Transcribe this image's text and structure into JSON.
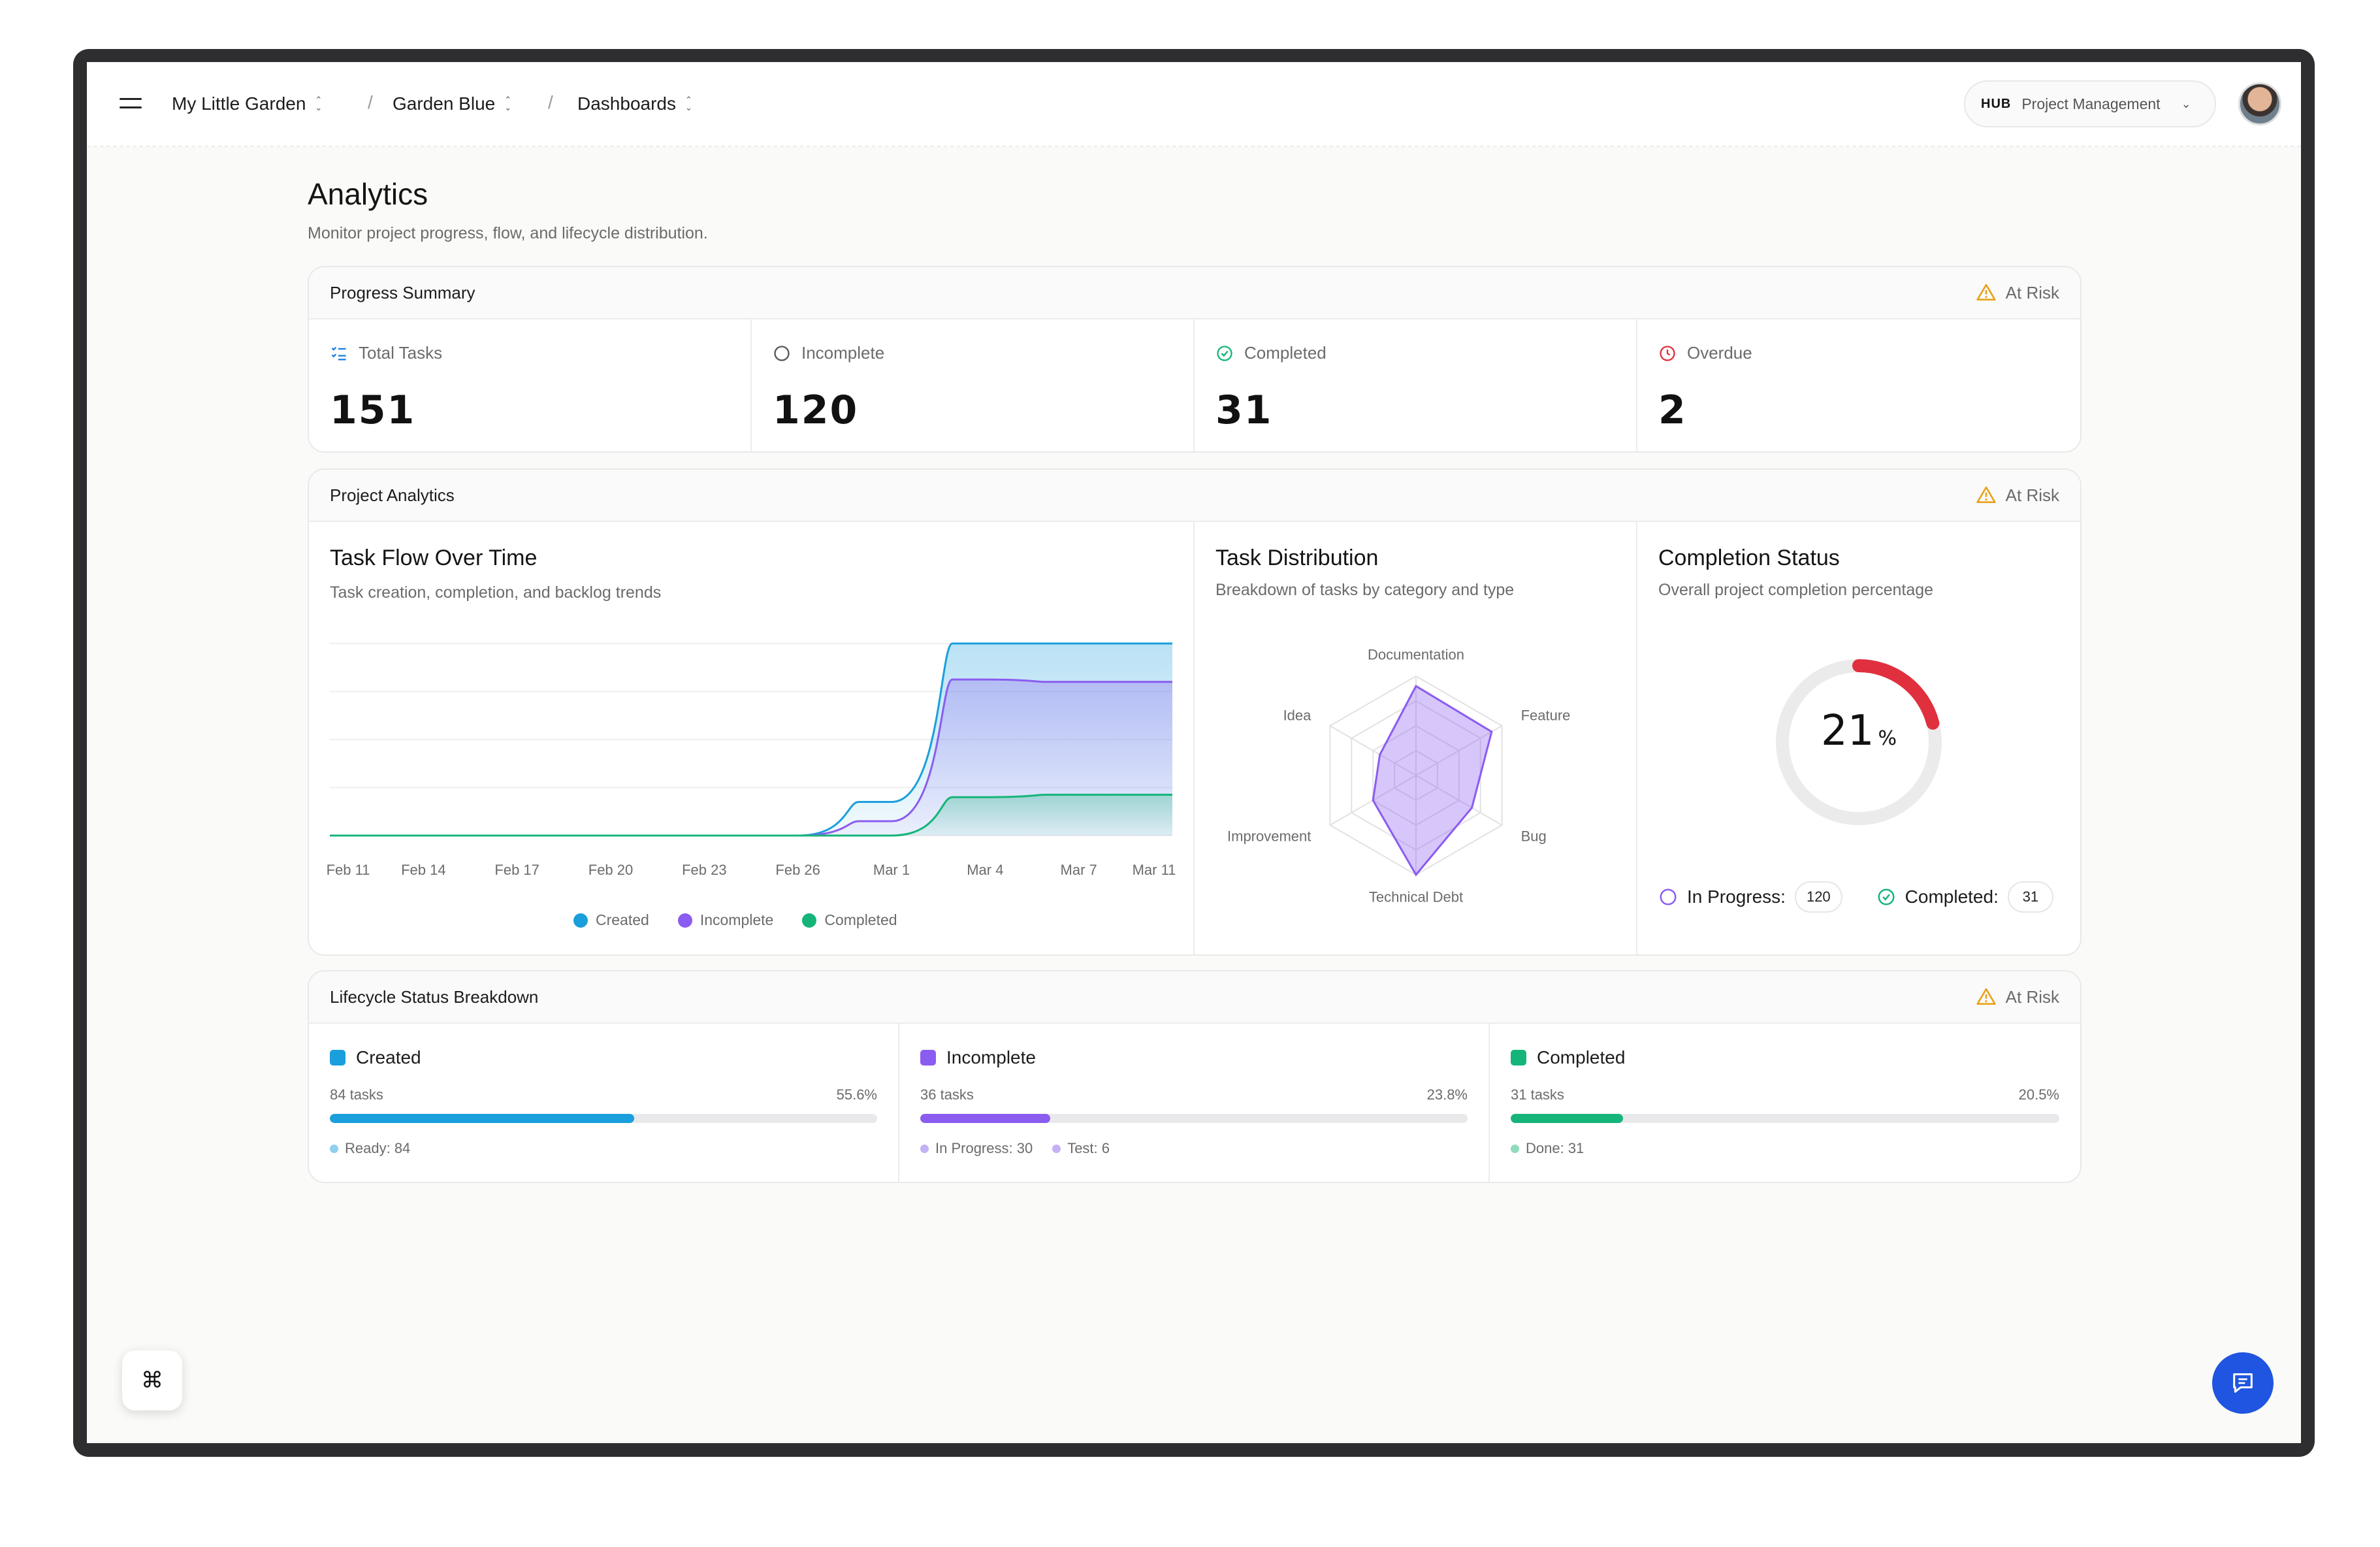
{
  "header": {
    "breadcrumbs": [
      "My Little Garden",
      "Garden Blue",
      "Dashboards"
    ],
    "separator": "/",
    "hub_label": "HUB",
    "hub_value": "Project Management"
  },
  "page": {
    "title": "Analytics",
    "subtitle": "Monitor project progress, flow, and lifecycle distribution."
  },
  "progress_summary": {
    "title": "Progress Summary",
    "status": "At Risk",
    "stats": [
      {
        "label": "Total Tasks",
        "value": "151",
        "icon": "list-check-icon"
      },
      {
        "label": "Incomplete",
        "value": "120",
        "icon": "circle-icon"
      },
      {
        "label": "Completed",
        "value": "31",
        "icon": "check-circle-icon"
      },
      {
        "label": "Overdue",
        "value": "2",
        "icon": "clock-icon"
      }
    ]
  },
  "project_analytics": {
    "title": "Project Analytics",
    "status": "At Risk",
    "task_flow": {
      "title": "Task Flow Over Time",
      "subtitle": "Task creation, completion, and backlog trends",
      "legend": [
        "Created",
        "Incomplete",
        "Completed"
      ]
    },
    "task_distribution": {
      "title": "Task Distribution",
      "subtitle": "Breakdown of tasks by category and type"
    },
    "completion": {
      "title": "Completion Status",
      "subtitle": "Overall project completion percentage",
      "percent_value": "21",
      "percent_sign": "%",
      "in_progress_label": "In Progress:",
      "in_progress_value": "120",
      "completed_label": "Completed:",
      "completed_value": "31"
    }
  },
  "lifecycle": {
    "title": "Lifecycle Status Breakdown",
    "status": "At Risk",
    "items": [
      {
        "label": "Created",
        "tasks": "84 tasks",
        "pct": "55.6%",
        "fill": 55.6,
        "color": "#1a9fdc",
        "subs": [
          {
            "text": "Ready: 84",
            "color": "#8fd0f0"
          }
        ]
      },
      {
        "label": "Incomplete",
        "tasks": "36 tasks",
        "pct": "23.8%",
        "fill": 23.8,
        "color": "#8b5cf0",
        "subs": [
          {
            "text": "In Progress: 30",
            "color": "#c4b1f5"
          },
          {
            "text": "Test: 6",
            "color": "#c4b1f5"
          }
        ]
      },
      {
        "label": "Completed",
        "tasks": "31 tasks",
        "pct": "20.5%",
        "fill": 20.5,
        "color": "#15b57a",
        "subs": [
          {
            "text": "Done: 31",
            "color": "#8fdcbb"
          }
        ]
      }
    ]
  },
  "colors": {
    "created": "#1a9fdc",
    "incomplete": "#8b5cf0",
    "completed": "#15b57a",
    "overdue": "#e0303e",
    "warning": "#e8a21a",
    "accent": "#1f55e0"
  },
  "chart_data": [
    {
      "type": "area",
      "title": "Task Flow Over Time",
      "x": [
        "Feb 11",
        "Feb 14",
        "Feb 17",
        "Feb 20",
        "Feb 23",
        "Feb 26",
        "Mar 1",
        "Mar 4",
        "Mar 7",
        "Mar 11"
      ],
      "ylim": [
        0,
        160
      ],
      "grid": true,
      "legend_position": "bottom",
      "series": [
        {
          "name": "Created",
          "color": "#1a9fdc",
          "values": [
            0,
            0,
            0,
            0,
            0,
            0,
            28,
            160,
            160,
            160
          ]
        },
        {
          "name": "Incomplete",
          "color": "#8b5cf0",
          "values": [
            0,
            0,
            0,
            0,
            0,
            0,
            12,
            130,
            128,
            128
          ]
        },
        {
          "name": "Completed",
          "color": "#15b57a",
          "values": [
            0,
            0,
            0,
            0,
            0,
            0,
            0,
            32,
            34,
            34
          ]
        }
      ]
    },
    {
      "type": "radar",
      "title": "Task Distribution",
      "categories": [
        "Documentation",
        "Feature",
        "Bug",
        "Technical Debt",
        "Improvement",
        "Idea"
      ],
      "values": [
        90,
        88,
        65,
        100,
        50,
        42
      ],
      "max": 100,
      "color": "#8b5cf0"
    },
    {
      "type": "pie",
      "title": "Completion Status",
      "values": [
        21,
        79
      ],
      "categories": [
        "Completed",
        "Remaining"
      ],
      "colors": [
        "#e0303e",
        "#ebebeb"
      ]
    }
  ]
}
